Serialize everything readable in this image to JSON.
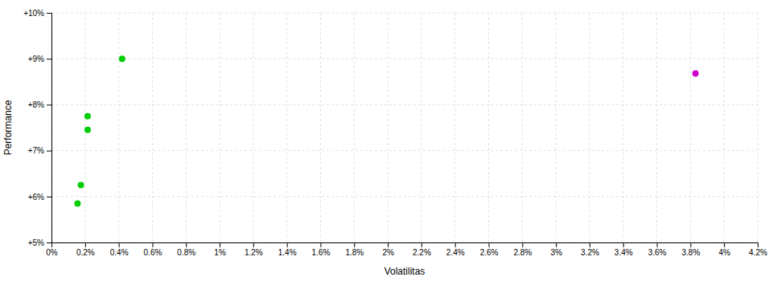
{
  "chart_data": {
    "type": "scatter",
    "xlabel": "Volatilitas",
    "ylabel": "Performance",
    "xlim": [
      0.0,
      0.042
    ],
    "ylim": [
      0.05,
      0.1
    ],
    "xticks": [
      {
        "value": 0.0,
        "label": "0%"
      },
      {
        "value": 0.002,
        "label": "0.2%"
      },
      {
        "value": 0.004,
        "label": "0.4%"
      },
      {
        "value": 0.006,
        "label": "0.6%"
      },
      {
        "value": 0.008,
        "label": "0.8%"
      },
      {
        "value": 0.01,
        "label": "1%"
      },
      {
        "value": 0.012,
        "label": "1.2%"
      },
      {
        "value": 0.014,
        "label": "1.4%"
      },
      {
        "value": 0.016,
        "label": "1.6%"
      },
      {
        "value": 0.018,
        "label": "1.8%"
      },
      {
        "value": 0.02,
        "label": "2%"
      },
      {
        "value": 0.022,
        "label": "2.2%"
      },
      {
        "value": 0.024,
        "label": "2.4%"
      },
      {
        "value": 0.026,
        "label": "2.6%"
      },
      {
        "value": 0.028,
        "label": "2.8%"
      },
      {
        "value": 0.03,
        "label": "3%"
      },
      {
        "value": 0.032,
        "label": "3.2%"
      },
      {
        "value": 0.034,
        "label": "3.4%"
      },
      {
        "value": 0.036,
        "label": "3.6%"
      },
      {
        "value": 0.038,
        "label": "3.8%"
      },
      {
        "value": 0.04,
        "label": "4%"
      },
      {
        "value": 0.042,
        "label": "4.2%"
      }
    ],
    "yticks": [
      {
        "value": 0.05,
        "label": "+5%"
      },
      {
        "value": 0.06,
        "label": "+6%"
      },
      {
        "value": 0.07,
        "label": "+7%"
      },
      {
        "value": 0.08,
        "label": "+8%"
      },
      {
        "value": 0.09,
        "label": "+9%"
      },
      {
        "value": 0.1,
        "label": "+10%"
      }
    ],
    "grid": true,
    "series": [
      {
        "color": "#00cc00",
        "marker": "circle",
        "x": [
          0.0042,
          0.00215,
          0.00215,
          0.00175,
          0.00155
        ],
        "values": [
          0.09,
          0.0775,
          0.0745,
          0.0625,
          0.0585
        ]
      },
      {
        "color": "#cc00cc",
        "marker": "circle",
        "x": [
          0.0383
        ],
        "values": [
          0.0868
        ]
      }
    ]
  }
}
